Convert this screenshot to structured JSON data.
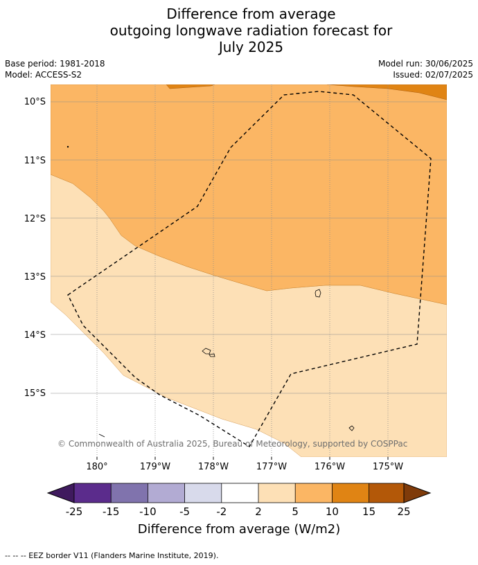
{
  "title": {
    "line1": "Difference from average",
    "line2": "outgoing longwave radiation forecast for",
    "line3": "July 2025"
  },
  "meta": {
    "base_period": "Base period: 1981-2018",
    "model": "Model: ACCESS-S2",
    "model_run": "Model run: 30/06/2025",
    "issued": "Issued: 02/07/2025"
  },
  "map": {
    "lat_labels": [
      "10°S",
      "11°S",
      "12°S",
      "13°S",
      "14°S",
      "15°S"
    ],
    "lon_labels": [
      "180°",
      "179°W",
      "178°W",
      "177°W",
      "176°W",
      "175°W"
    ],
    "copyright": "© Commonwealth of Australia 2025, Bureau of Meteorology, supported by COSPPac"
  },
  "colorbar": {
    "ticks": [
      "-25",
      "-15",
      "-10",
      "-5",
      "-2",
      "2",
      "5",
      "10",
      "15",
      "25"
    ],
    "colors": [
      "#3f1a5e",
      "#5b2c8c",
      "#8073ad",
      "#b2abd3",
      "#d8daeb",
      "#ffffff",
      "#fde0b6",
      "#fbb664",
      "#e08414",
      "#b35808",
      "#7f3b0a"
    ],
    "label": "Difference from average (W/m2)"
  },
  "legend_note": "--  --  -- EEZ border V11 (Flanders Marine Institute, 2019)."
}
